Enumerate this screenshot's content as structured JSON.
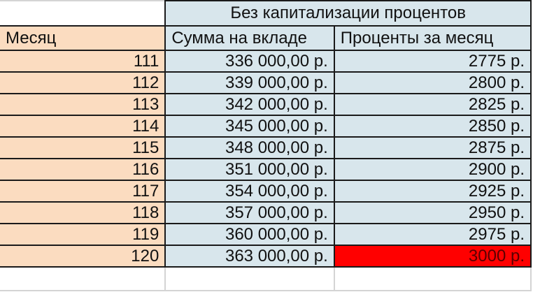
{
  "table": {
    "group_header": "Без капитализации процентов",
    "columns": [
      "Месяц",
      "Сумма на вкладе",
      "Проценты за месяц"
    ],
    "rows": [
      {
        "month": "111",
        "sum": "336 000,00 р.",
        "interest": "2775 р."
      },
      {
        "month": "112",
        "sum": "339 000,00 р.",
        "interest": "2800 р."
      },
      {
        "month": "113",
        "sum": "342 000,00 р.",
        "interest": "2825 р."
      },
      {
        "month": "114",
        "sum": "345 000,00 р.",
        "interest": "2850 р."
      },
      {
        "month": "115",
        "sum": "348 000,00 р.",
        "interest": "2875 р."
      },
      {
        "month": "116",
        "sum": "351 000,00 р.",
        "interest": "2900 р."
      },
      {
        "month": "117",
        "sum": "354 000,00 р.",
        "interest": "2925 р."
      },
      {
        "month": "118",
        "sum": "357 000,00 р.",
        "interest": "2950 р."
      },
      {
        "month": "119",
        "sum": "360 000,00 р.",
        "interest": "2975 р."
      },
      {
        "month": "120",
        "sum": "363 000,00 р.",
        "interest": "3000 р."
      }
    ],
    "highlight_color": "#ff0000"
  }
}
